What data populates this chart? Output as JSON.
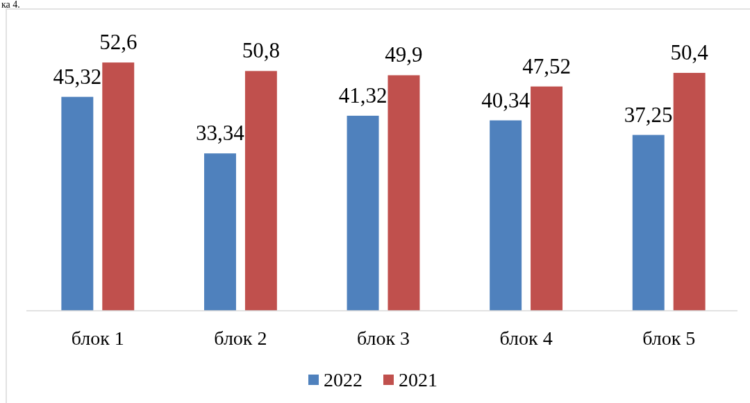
{
  "chart_data": {
    "type": "bar",
    "categories": [
      "блок 1",
      "блок 2",
      "блок 3",
      "блок 4",
      "блок 5"
    ],
    "series": [
      {
        "name": "2022",
        "color": "#4f81bd",
        "values": [
          45.32,
          33.34,
          41.32,
          40.34,
          37.25
        ],
        "value_labels": [
          "45,32",
          "33,34",
          "41,32",
          "40,34",
          "37,25"
        ]
      },
      {
        "name": "2021",
        "color": "#c0504d",
        "values": [
          52.6,
          50.8,
          49.9,
          47.52,
          50.4
        ],
        "value_labels": [
          "52,6",
          "50,8",
          "49,9",
          "47,52",
          "50,4"
        ]
      }
    ],
    "legend": "bottom",
    "annotations": [
      "ка 4."
    ]
  }
}
